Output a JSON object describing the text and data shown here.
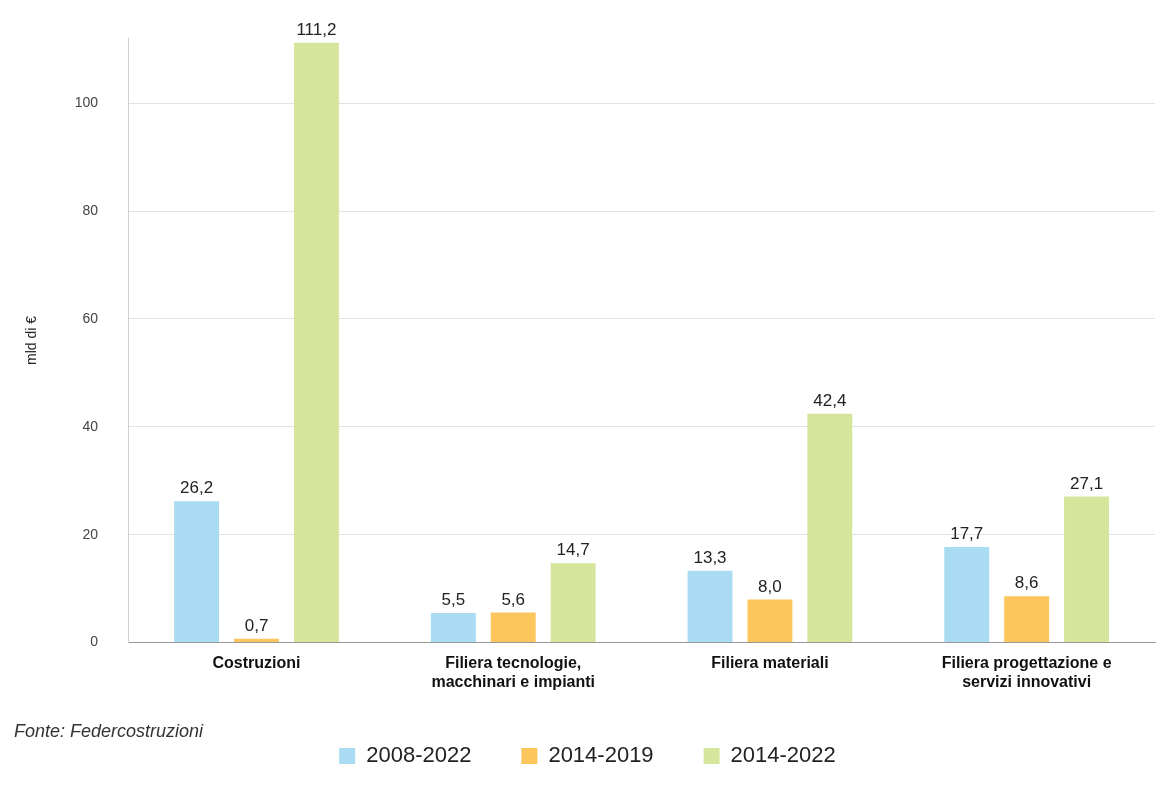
{
  "chart_data": {
    "type": "bar",
    "ylabel": "mld di €",
    "categories": [
      "Costruzioni",
      "Filiera tecnologie, macchinari e impianti",
      "Filiera materiali",
      "Filiera progettazione e servizi innovativi"
    ],
    "series": [
      {
        "name": "2008-2022",
        "color": "#a9dcf2",
        "values": [
          26.2,
          5.5,
          13.3,
          17.7
        ],
        "value_labels": [
          "26,2",
          "5,5",
          "13,3",
          "17,7"
        ]
      },
      {
        "name": "2014-2019",
        "color": "#fcc65c",
        "values": [
          0.7,
          5.6,
          8.0,
          8.6
        ],
        "value_labels": [
          "0,7",
          "5,6",
          "8,0",
          "8,6"
        ]
      },
      {
        "name": "2014-2022",
        "color": "#d5e69c",
        "values": [
          111.2,
          14.7,
          42.4,
          27.1
        ],
        "value_labels": [
          "111,2",
          "14,7",
          "42,4",
          "27,1"
        ]
      }
    ],
    "ylim": [
      0,
      112
    ],
    "yticks": [
      0,
      20,
      40,
      60,
      80,
      100
    ],
    "grid": "y",
    "legend": "bottom",
    "annotations": [
      "Fonte: Federcostruzioni"
    ]
  }
}
